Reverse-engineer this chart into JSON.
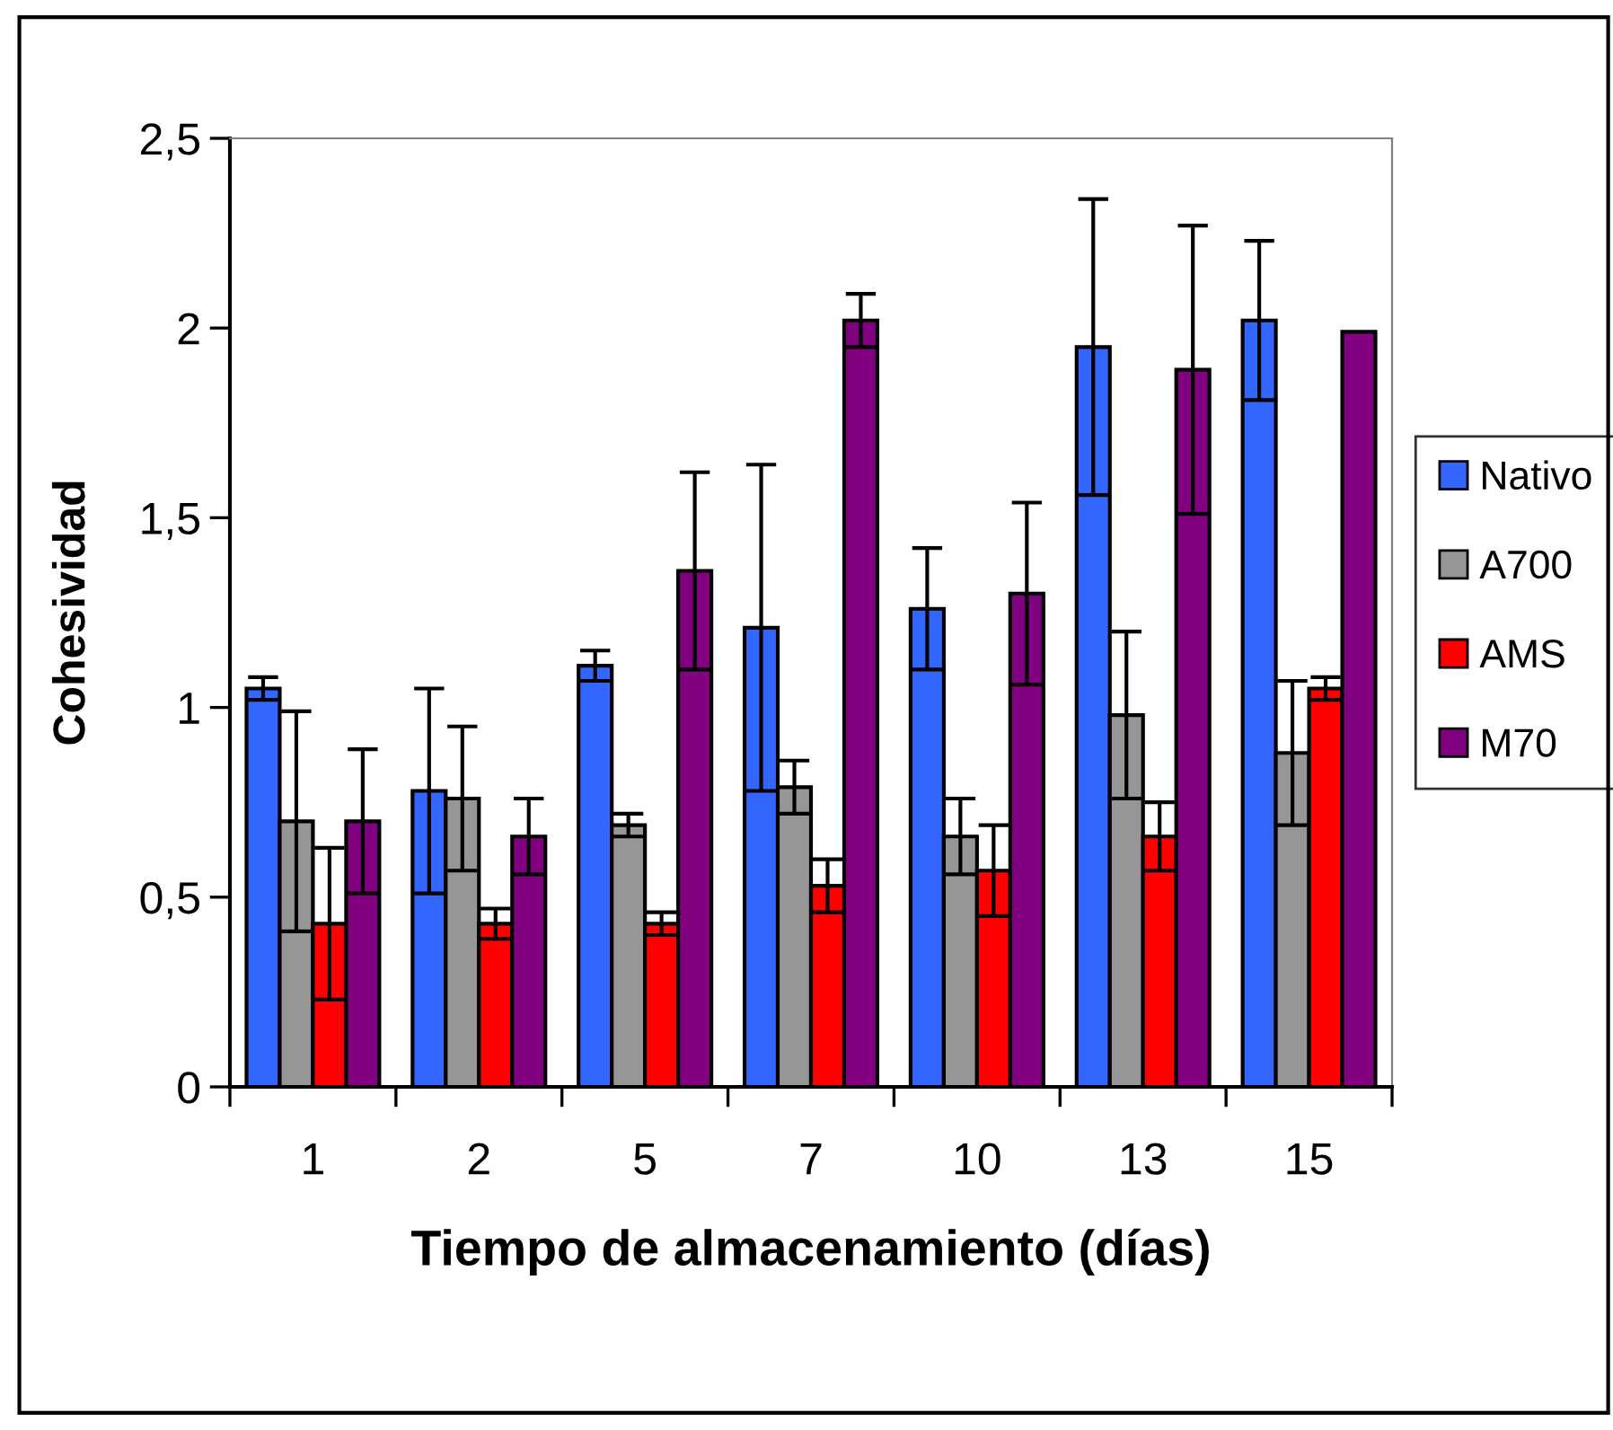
{
  "chart_data": {
    "type": "bar",
    "xlabel": "Tiempo de almacenamiento (días)",
    "ylabel": "Cohesividad",
    "categories": [
      "1",
      "2",
      "5",
      "7",
      "10",
      "13",
      "15"
    ],
    "series": [
      {
        "name": "Nativo",
        "color": "#3366ff",
        "values": [
          1.05,
          0.78,
          1.11,
          1.21,
          1.26,
          1.95,
          2.02
        ],
        "errors": [
          0.03,
          0.27,
          0.04,
          0.43,
          0.16,
          0.39,
          0.21
        ]
      },
      {
        "name": "A700",
        "color": "#969696",
        "values": [
          0.7,
          0.76,
          0.69,
          0.79,
          0.66,
          0.98,
          0.88
        ],
        "errors": [
          0.29,
          0.19,
          0.03,
          0.07,
          0.1,
          0.22,
          0.19
        ]
      },
      {
        "name": "AMS",
        "color": "#ff0000",
        "values": [
          0.43,
          0.43,
          0.43,
          0.53,
          0.57,
          0.66,
          1.05
        ],
        "errors": [
          0.2,
          0.04,
          0.03,
          0.07,
          0.12,
          0.09,
          0.03
        ]
      },
      {
        "name": "M70",
        "color": "#800080",
        "values": [
          0.7,
          0.66,
          1.36,
          2.02,
          1.3,
          1.89,
          1.99
        ],
        "errors": [
          0.19,
          0.1,
          0.26,
          0.07,
          0.24,
          0.38,
          null
        ]
      }
    ],
    "ylim": [
      0,
      2.5
    ],
    "yticks": [
      {
        "value": 0,
        "label": "0"
      },
      {
        "value": 0.5,
        "label": "0,5"
      },
      {
        "value": 1,
        "label": "1"
      },
      {
        "value": 1.5,
        "label": "1,5"
      },
      {
        "value": 2,
        "label": "2"
      },
      {
        "value": 2.5,
        "label": "2,5"
      }
    ],
    "grid": false,
    "legend": "right"
  }
}
